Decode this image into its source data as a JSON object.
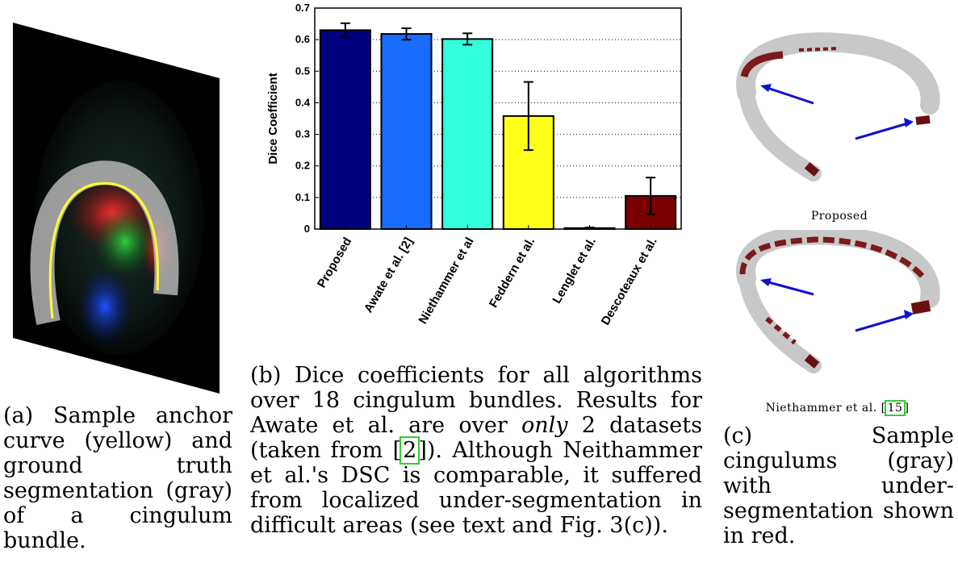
{
  "panel_a": {
    "caption": "(a) Sample anchor curve (yellow) and ground truth segmentation (gray) of a cingulum bundle."
  },
  "panel_b": {
    "caption_parts": {
      "p1": "(b) Dice coefficients for all algorithms over 18 cingulum bundles. Results for Awate et al. are over ",
      "em": "only",
      "p2": " 2 datasets (taken from [",
      "ref": "2",
      "p3": "]). Although Neithammer et al.'s DSC is comparable, it suffered from localized under-segmentation in difficult areas (see text and Fig. 3(c))."
    }
  },
  "panel_c": {
    "label_top": "Proposed",
    "label_bottom_text": "Niethammer et al. [",
    "label_bottom_ref": "15",
    "label_bottom_end": "]",
    "caption": "(c) Sample cingulums (gray) with under-segmentation shown in red."
  },
  "chart_data": {
    "type": "bar",
    "ylabel": "Dice Coefficient",
    "xlabel": "",
    "title": "",
    "ylim": [
      0,
      0.7
    ],
    "yticks": [
      "0",
      "0.1",
      "0.2",
      "0.3",
      "0.4",
      "0.5",
      "0.6",
      "0.7"
    ],
    "grid": "horizontal-dotted",
    "categories": [
      "Proposed",
      "Awate et al. [2]",
      "Niethammer et al",
      "Feddern et al.",
      "Lenglet et al.",
      "Descoteaux et al."
    ],
    "values": [
      0.63,
      0.618,
      0.602,
      0.358,
      0.003,
      0.105
    ],
    "error": [
      0.022,
      0.018,
      0.018,
      0.108,
      0.002,
      0.058
    ],
    "colors": [
      "#000080",
      "#1a6cff",
      "#33ffdd",
      "#ffff1a",
      "#ffbb00",
      "#7a0000"
    ]
  }
}
